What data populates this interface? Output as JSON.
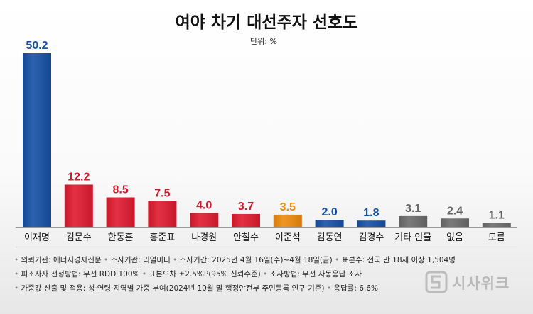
{
  "chart_data": {
    "type": "bar",
    "title": "여야 차기 대선주자 선호도",
    "unit_label": "단위: %",
    "categories": [
      "이재명",
      "김문수",
      "한동훈",
      "홍준표",
      "나경원",
      "안철수",
      "이준석",
      "김동연",
      "김경수",
      "기타 인물",
      "없음",
      "모름"
    ],
    "values": [
      50.2,
      12.2,
      8.5,
      7.5,
      4.0,
      3.7,
      3.5,
      2.0,
      1.8,
      3.1,
      2.4,
      1.1
    ],
    "value_labels": [
      "50.2",
      "12.2",
      "8.5",
      "7.5",
      "4.0",
      "3.7",
      "3.5",
      "2.0",
      "1.8",
      "3.1",
      "2.4",
      "1.1"
    ],
    "bar_colors": [
      "#1550a7",
      "#e01a2f",
      "#e01a2f",
      "#e01a2f",
      "#e01a2f",
      "#e01a2f",
      "#ee8a0c",
      "#1550a7",
      "#1550a7",
      "#6b6b6b",
      "#6b6b6b",
      "#6b6b6b"
    ],
    "label_colors": [
      "#1550a7",
      "#d8192c",
      "#d8192c",
      "#d8192c",
      "#d8192c",
      "#d8192c",
      "#ee8a0c",
      "#1550a7",
      "#1550a7",
      "#666666",
      "#666666",
      "#666666"
    ],
    "ylim": [
      0,
      50.2
    ],
    "grid": false,
    "legend": "none"
  },
  "footnotes": [
    [
      "의뢰기관: 에너지경제신문",
      "조사기관: 리얼미터",
      "조사기간: 2025년 4월 16일(수)~4월 18일(금)",
      "표본수: 전국 만 18세 이상 1,504명"
    ],
    [
      "피조사자 선정방법: 무선 RDD 100%",
      "표본오차 ±2.5%P(95% 신뢰수준)",
      "조사방법: 무선 자동응답 조사"
    ],
    [
      "가중값 산출 및 적용: 성·연령·지역별 가중 부여(2024년 10월 말 행정안전부 주민등록 인구 기준)",
      "응답률: 6.6%"
    ]
  ],
  "watermark": {
    "text": "시사위크"
  }
}
